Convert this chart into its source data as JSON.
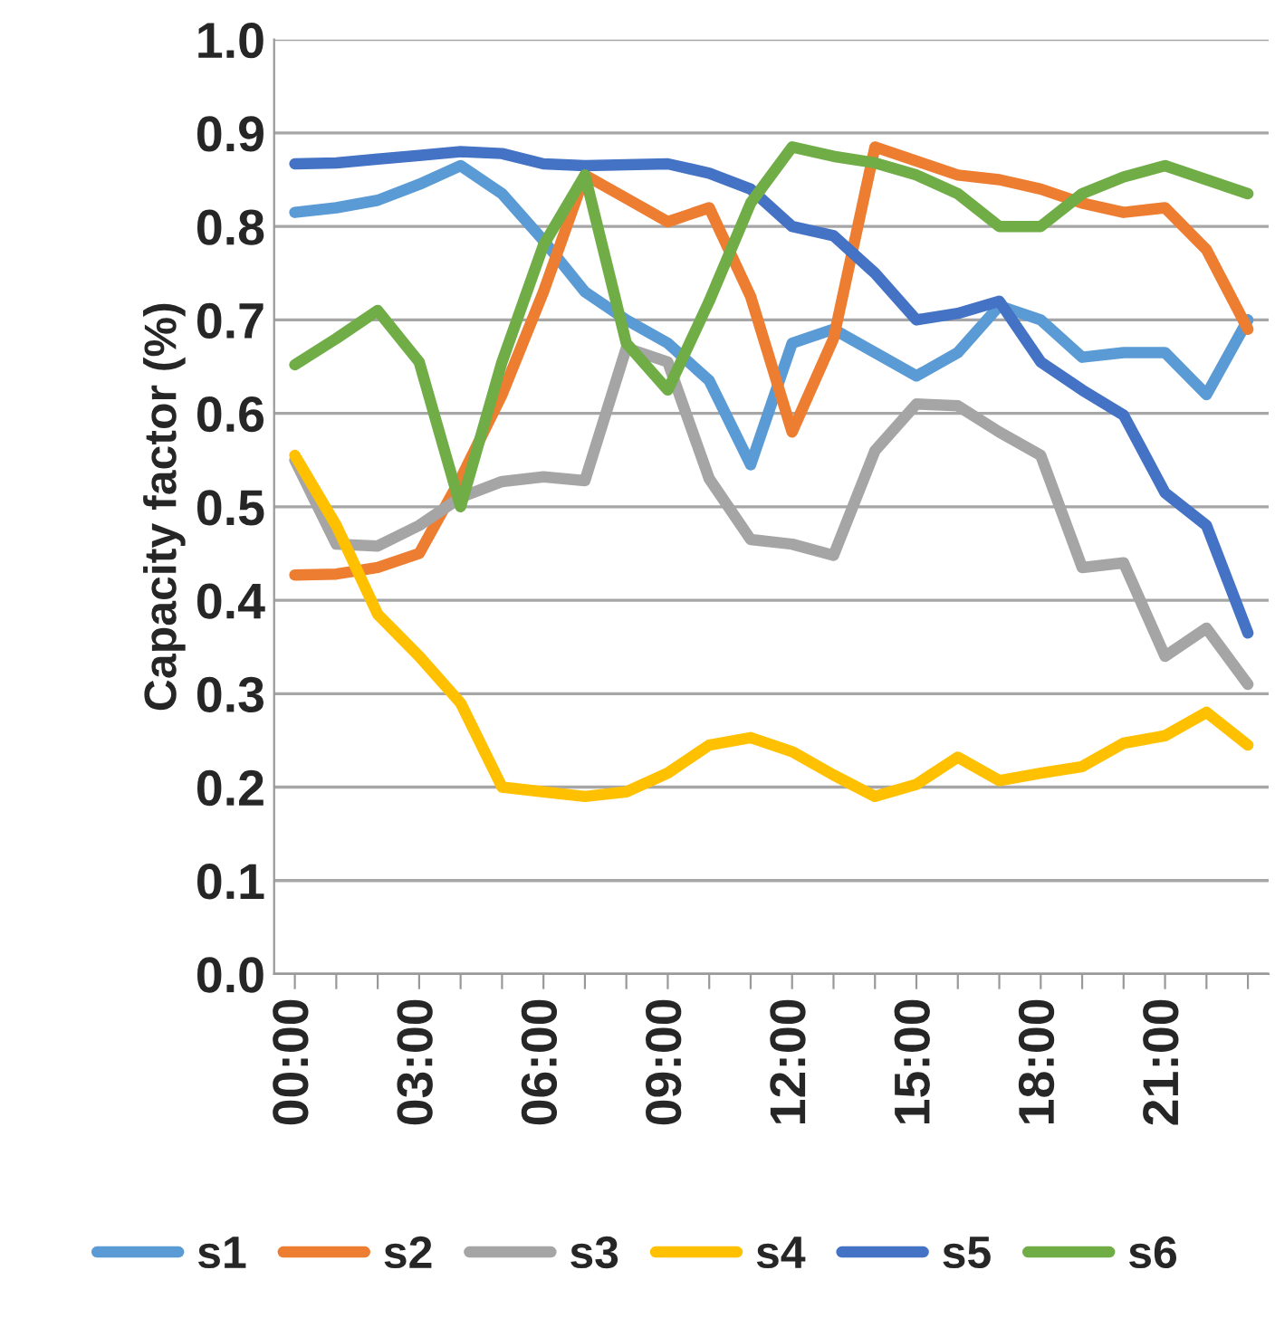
{
  "chart_data": {
    "type": "line",
    "ylabel": "Capacity factor (%)",
    "categories": [
      "00:00",
      null,
      null,
      "03:00",
      null,
      null,
      "06:00",
      null,
      null,
      "09:00",
      null,
      null,
      "12:00",
      null,
      null,
      "15:00",
      null,
      null,
      "18:00",
      null,
      null,
      "21:00",
      null,
      null
    ],
    "series": [
      {
        "name": "s1",
        "color": "#5b9bd5",
        "values": [
          0.815,
          0.82,
          0.828,
          0.845,
          0.865,
          0.835,
          0.785,
          0.73,
          0.7,
          0.675,
          0.635,
          0.545,
          0.675,
          0.69,
          0.665,
          0.64,
          0.665,
          0.715,
          0.7,
          0.66,
          0.665,
          0.665,
          0.62,
          0.7
        ]
      },
      {
        "name": "s2",
        "color": "#ed7d31",
        "values": [
          0.427,
          0.428,
          0.435,
          0.45,
          0.53,
          0.62,
          0.73,
          0.855,
          0.83,
          0.805,
          0.82,
          0.725,
          0.58,
          0.68,
          0.885,
          0.87,
          0.855,
          0.85,
          0.84,
          0.825,
          0.815,
          0.82,
          0.775,
          0.69
        ]
      },
      {
        "name": "s3",
        "color": "#a5a5a5",
        "values": [
          0.55,
          0.46,
          0.458,
          0.48,
          0.51,
          0.527,
          0.532,
          0.528,
          0.67,
          0.655,
          0.53,
          0.465,
          0.46,
          0.448,
          0.56,
          0.61,
          0.608,
          0.58,
          0.555,
          0.435,
          0.44,
          0.34,
          0.37,
          0.31
        ]
      },
      {
        "name": "s4",
        "color": "#ffc000",
        "values": [
          0.555,
          0.48,
          0.385,
          0.34,
          0.29,
          0.2,
          0.195,
          0.19,
          0.195,
          0.215,
          0.245,
          0.253,
          0.238,
          0.213,
          0.19,
          0.203,
          0.232,
          0.207,
          0.215,
          0.222,
          0.247,
          0.255,
          0.28,
          0.245
        ]
      },
      {
        "name": "s5",
        "color": "#4472c4",
        "values": [
          0.867,
          0.868,
          0.872,
          0.876,
          0.88,
          0.878,
          0.867,
          0.865,
          0.866,
          0.867,
          0.857,
          0.84,
          0.8,
          0.79,
          0.75,
          0.7,
          0.707,
          0.72,
          0.655,
          0.625,
          0.598,
          0.515,
          0.48,
          0.365
        ]
      },
      {
        "name": "s6",
        "color": "#70ad47",
        "values": [
          0.652,
          0.68,
          0.71,
          0.655,
          0.5,
          0.655,
          0.78,
          0.855,
          0.675,
          0.625,
          0.72,
          0.825,
          0.885,
          0.875,
          0.868,
          0.855,
          0.835,
          0.8,
          0.8,
          0.835,
          0.853,
          0.865,
          0.85,
          0.835
        ]
      }
    ],
    "ylim": [
      0,
      1.0
    ],
    "yticks": [
      {
        "value": 0,
        "label": "0.0"
      },
      {
        "value": 0.1,
        "label": "0.1"
      },
      {
        "value": 0.2,
        "label": "0.2"
      },
      {
        "value": 0.3,
        "label": "0.3"
      },
      {
        "value": 0.4,
        "label": "0.4"
      },
      {
        "value": 0.5,
        "label": "0.5"
      },
      {
        "value": 0.6,
        "label": "0.6"
      },
      {
        "value": 0.7,
        "label": "0.7"
      },
      {
        "value": 0.8,
        "label": "0.8"
      },
      {
        "value": 0.9,
        "label": "0.9"
      },
      {
        "value": 1.0,
        "label": "1.0"
      }
    ],
    "grid": "y",
    "legend": "bottom",
    "marker": "none",
    "line_style": "solid"
  }
}
